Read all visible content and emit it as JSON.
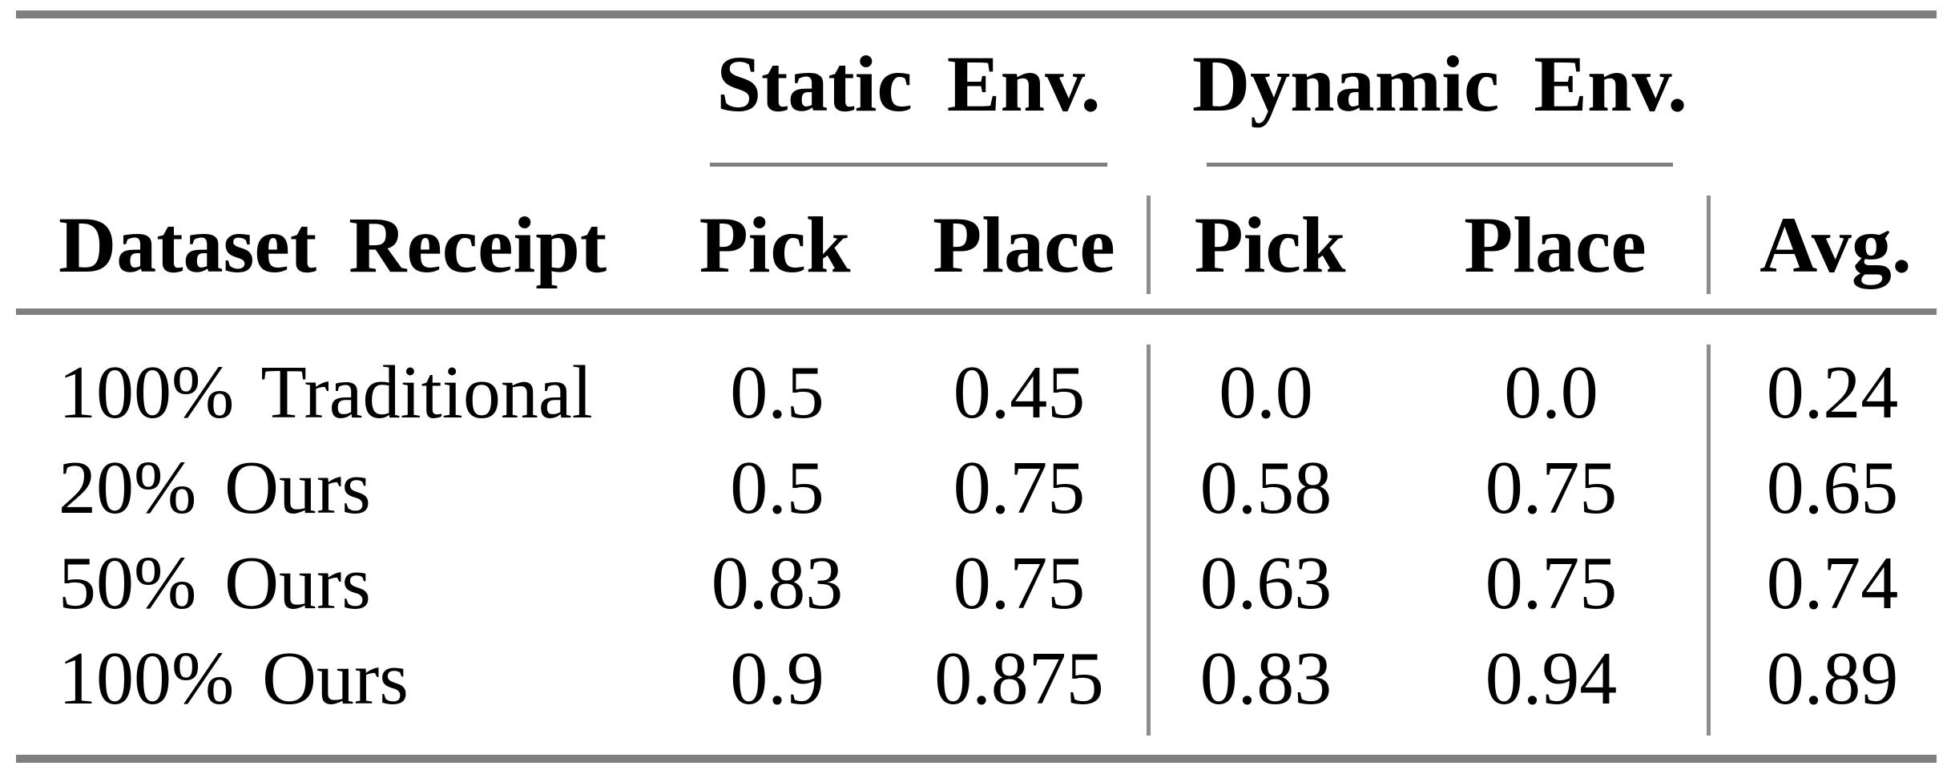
{
  "table": {
    "col_groups": [
      {
        "label": "Static Env."
      },
      {
        "label": "Dynamic Env."
      }
    ],
    "header": {
      "row_label": "Dataset Receipt",
      "static_pick": "Pick",
      "static_place": "Place",
      "dynamic_pick": "Pick",
      "dynamic_place": "Place",
      "avg": "Avg."
    },
    "rows": [
      {
        "label": "100% Traditional",
        "values": [
          "0.5",
          "0.45",
          "0.0",
          "0.0",
          "0.24"
        ]
      },
      {
        "label": "20% Ours",
        "values": [
          "0.5",
          "0.75",
          "0.58",
          "0.75",
          "0.65"
        ]
      },
      {
        "label": "50% Ours",
        "values": [
          "0.83",
          "0.75",
          "0.63",
          "0.75",
          "0.74"
        ]
      },
      {
        "label": "100% Ours",
        "values": [
          "0.9",
          "0.875",
          "0.83",
          "0.94",
          "0.89"
        ]
      }
    ],
    "colors": {
      "rule_gray": "#7f7f7f",
      "separator_gray": "#8d8d8d",
      "text": "#000000",
      "background": "#ffffff"
    }
  },
  "chart_data": {
    "type": "table",
    "title": "",
    "column_groups": [
      "",
      "Static Env.",
      "Static Env.",
      "Dynamic Env.",
      "Dynamic Env.",
      ""
    ],
    "columns": [
      "Dataset Receipt",
      "Pick",
      "Place",
      "Pick",
      "Place",
      "Avg."
    ],
    "rows": [
      [
        "100% Traditional",
        0.5,
        0.45,
        0.0,
        0.0,
        0.24
      ],
      [
        "20% Ours",
        0.5,
        0.75,
        0.58,
        0.75,
        0.65
      ],
      [
        "50% Ours",
        0.83,
        0.75,
        0.63,
        0.75,
        0.74
      ],
      [
        "100% Ours",
        0.9,
        0.875,
        0.83,
        0.94,
        0.89
      ]
    ]
  }
}
